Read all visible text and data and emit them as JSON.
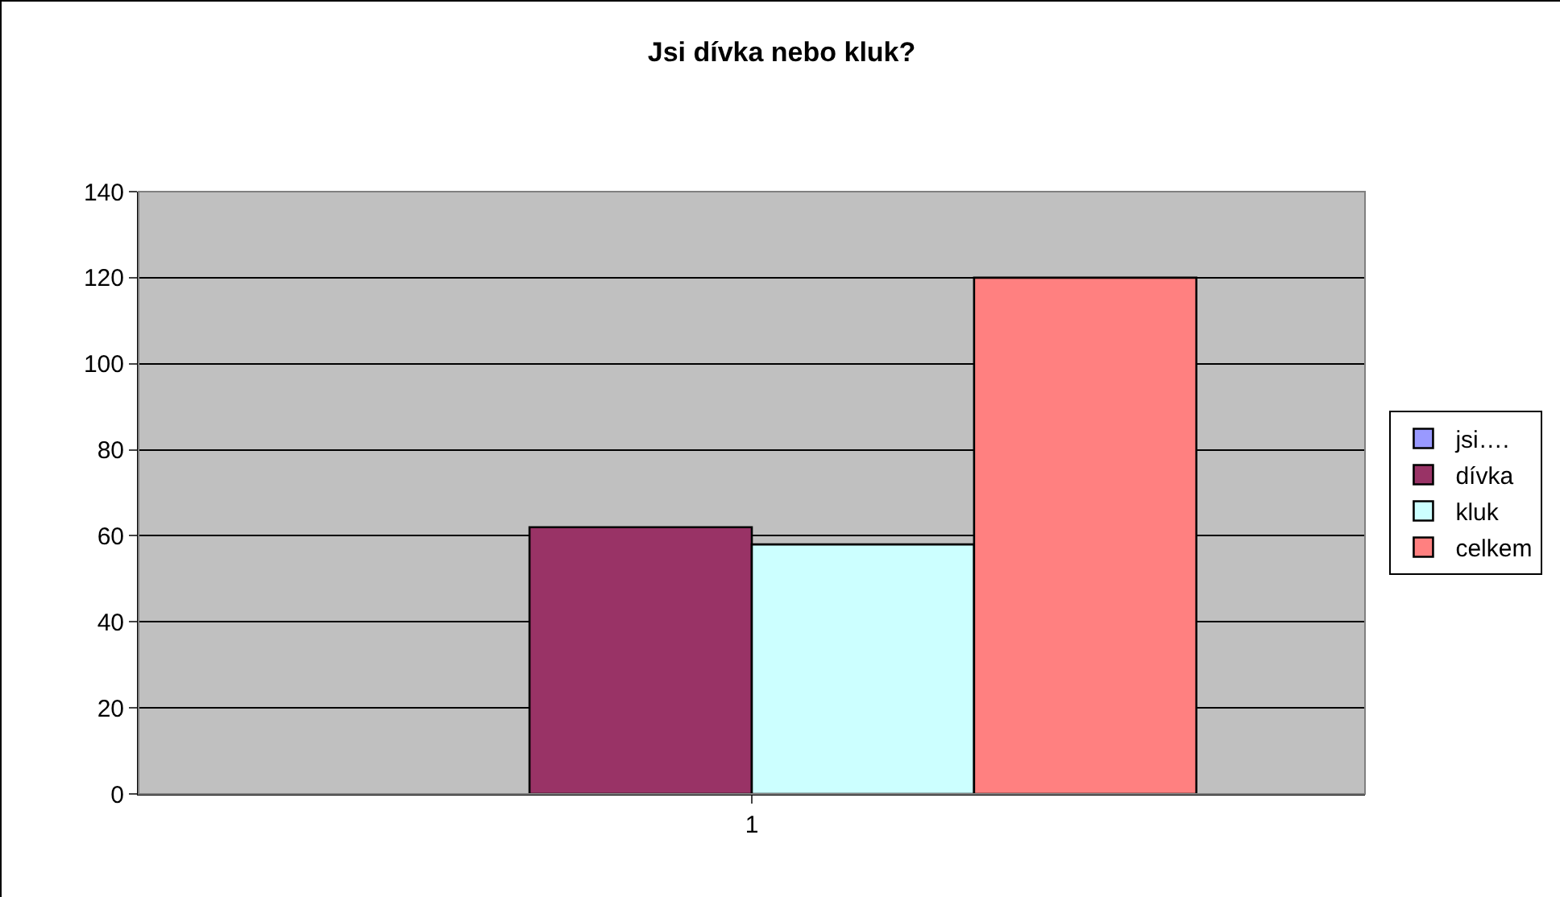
{
  "chart_data": {
    "type": "bar",
    "title": "Jsi dívka nebo kluk?",
    "categories": [
      "1"
    ],
    "series": [
      {
        "name": "jsi….",
        "color": "#9999ff",
        "values": [
          null
        ]
      },
      {
        "name": "dívka",
        "color": "#993366",
        "values": [
          62
        ]
      },
      {
        "name": "kluk",
        "color": "#ccffff",
        "values": [
          58
        ]
      },
      {
        "name": "celkem",
        "color": "#ff8080",
        "values": [
          120
        ]
      }
    ],
    "ylim": [
      0,
      140
    ],
    "yticks": [
      0,
      20,
      40,
      60,
      80,
      100,
      120,
      140
    ],
    "grid": "y",
    "legend": "right"
  }
}
